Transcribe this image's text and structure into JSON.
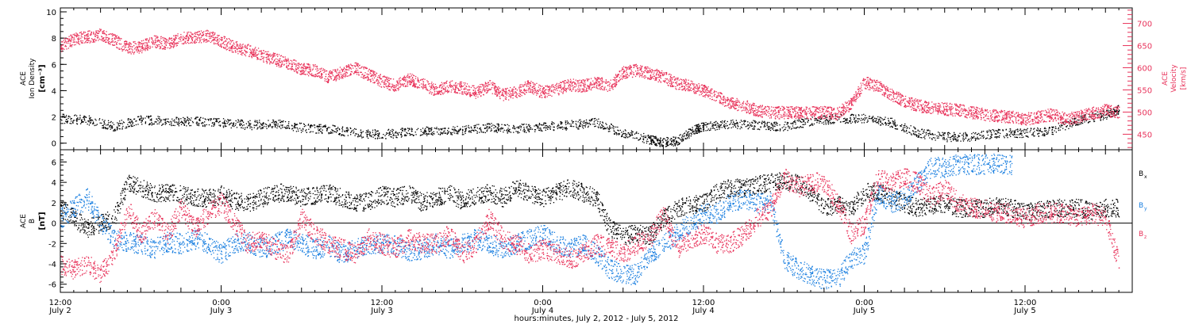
{
  "colors": {
    "black": "#000000",
    "pink": "#e8325a",
    "blue": "#1a7fe0"
  },
  "chart_data": [
    {
      "type": "scatter",
      "panel": "top",
      "ylabel_lines": [
        "ACE",
        "Ion Density"
      ],
      "ylabel_unit": "[cm⁻³]",
      "y2label_lines": [
        "ACE",
        "Velocity"
      ],
      "y2label_unit": "[km/s]",
      "ylim": [
        -0.5,
        10.3
      ],
      "yticks": [
        0,
        2,
        4,
        6,
        8,
        10
      ],
      "y2lim": [
        415,
        735
      ],
      "y2ticks": [
        450,
        500,
        550,
        600,
        650,
        700
      ],
      "xlim_hours": [
        0,
        80
      ],
      "series": [
        {
          "color_key": "black",
          "axis": "left",
          "x": [
            0,
            2,
            4,
            6,
            8,
            10,
            12,
            14,
            16,
            18,
            20,
            22,
            24,
            26,
            28,
            30,
            32,
            34,
            36,
            38,
            40,
            42,
            44,
            44.8,
            46,
            47.4,
            48,
            50,
            52,
            54,
            56,
            58,
            60,
            62,
            64,
            66,
            68,
            70,
            72,
            74,
            76,
            78,
            79
          ],
          "y": [
            1.9,
            1.8,
            1.3,
            1.8,
            1.7,
            1.7,
            1.6,
            1.4,
            1.5,
            1.2,
            1.1,
            0.8,
            0.7,
            0.9,
            1.0,
            1.0,
            1.2,
            1.1,
            1.3,
            1.4,
            1.6,
            0.8,
            0.3,
            0.1,
            0.2,
            1.1,
            1.3,
            1.5,
            1.4,
            1.3,
            1.7,
            1.9,
            1.9,
            1.6,
            0.8,
            0.5,
            0.5,
            0.8,
            0.8,
            1.0,
            1.8,
            2.2,
            2.6
          ]
        },
        {
          "color_key": "pink",
          "axis": "right",
          "x": [
            0,
            1,
            2,
            3,
            4,
            5,
            6,
            7,
            8,
            9,
            10,
            11,
            12,
            13,
            14,
            15,
            16,
            17,
            18,
            19,
            20,
            21,
            22,
            23,
            24,
            25,
            26,
            27,
            28,
            29,
            30,
            31,
            32,
            33,
            34,
            35,
            36,
            37,
            38,
            39,
            40,
            41,
            42,
            43,
            44,
            45,
            46,
            47,
            48,
            49,
            50,
            51,
            52,
            53,
            54,
            55,
            56,
            57,
            58,
            59,
            60,
            61,
            62,
            63,
            64,
            65,
            66,
            67,
            68,
            69,
            70,
            71,
            72,
            73,
            74,
            75,
            76,
            77,
            78,
            79
          ],
          "y": [
            650,
            665,
            670,
            675,
            663,
            645,
            648,
            660,
            655,
            668,
            670,
            672,
            660,
            648,
            640,
            628,
            620,
            610,
            598,
            595,
            580,
            590,
            600,
            585,
            570,
            560,
            575,
            565,
            550,
            560,
            555,
            545,
            560,
            540,
            545,
            560,
            545,
            552,
            562,
            560,
            568,
            560,
            590,
            595,
            588,
            580,
            565,
            560,
            550,
            535,
            520,
            515,
            505,
            500,
            500,
            500,
            500,
            500,
            498,
            520,
            568,
            560,
            540,
            525,
            515,
            510,
            508,
            505,
            500,
            495,
            492,
            490,
            485,
            490,
            495,
            485,
            490,
            498,
            505,
            500
          ]
        }
      ]
    },
    {
      "type": "scatter",
      "panel": "bottom",
      "ylabel_lines": [
        "ACE",
        "B"
      ],
      "ylabel_unit": "[nT]",
      "ylim": [
        -6.8,
        7.2
      ],
      "yticks": [
        -6,
        -4,
        -2,
        0,
        2,
        4,
        6
      ],
      "xlim_hours": [
        0,
        80
      ],
      "xticks": [
        {
          "hour": 0,
          "time": "12:00",
          "day": "July 2"
        },
        {
          "hour": 12,
          "time": "0:00",
          "day": "July 3"
        },
        {
          "hour": 24,
          "time": "12:00",
          "day": "July 3"
        },
        {
          "hour": 36,
          "time": "0:00",
          "day": "July 4"
        },
        {
          "hour": 48,
          "time": "12:00",
          "day": "July 4"
        },
        {
          "hour": 60,
          "time": "0:00",
          "day": "July 5"
        },
        {
          "hour": 72,
          "time": "12:00",
          "day": "July 5"
        }
      ],
      "xlabel": "hours:minutes, July  2, 2012 - July  5, 2012",
      "series": [
        {
          "name": "Bx",
          "legend_main": "B",
          "legend_sub": "x",
          "color_key": "black",
          "x": [
            0,
            1,
            2,
            3,
            4,
            5,
            6,
            7,
            8,
            9,
            10,
            11,
            12,
            13,
            14,
            15,
            16,
            17,
            18,
            19,
            20,
            21,
            22,
            23,
            24,
            25,
            26,
            27,
            28,
            29,
            30,
            31,
            32,
            33,
            34,
            35,
            36,
            37,
            38,
            39,
            40,
            41,
            42,
            43,
            44,
            45,
            46,
            47,
            48,
            49,
            50,
            51,
            52,
            53,
            54,
            55,
            56,
            57,
            58,
            59,
            60,
            61,
            62,
            63,
            64,
            65,
            66,
            67,
            68,
            69,
            70,
            71,
            72,
            73,
            74,
            75,
            76,
            77,
            78,
            79
          ],
          "y": [
            1.5,
            0.5,
            -0.5,
            0.0,
            0.5,
            4.0,
            3.5,
            3.0,
            3.0,
            2.8,
            2.5,
            2.5,
            2.8,
            2.2,
            2.0,
            2.5,
            3.0,
            3.0,
            2.5,
            2.8,
            3.0,
            2.5,
            2.0,
            2.2,
            2.8,
            2.5,
            3.0,
            2.0,
            2.5,
            3.0,
            2.2,
            2.8,
            3.0,
            2.5,
            3.5,
            3.0,
            2.5,
            3.0,
            3.5,
            3.0,
            2.5,
            -0.5,
            -1.2,
            -1.0,
            -1.2,
            0.5,
            1.5,
            1.8,
            2.0,
            3.0,
            3.5,
            3.5,
            3.8,
            4.0,
            4.2,
            4.0,
            3.0,
            1.5,
            1.8,
            1.5,
            3.0,
            3.2,
            2.5,
            2.0,
            1.5,
            1.8,
            2.0,
            1.5,
            1.5,
            1.5,
            1.8,
            1.5,
            1.2,
            1.3,
            1.5,
            1.5,
            1.5,
            1.2,
            1.5,
            1.5
          ]
        },
        {
          "name": "By",
          "legend_main": "B",
          "legend_sub": "y",
          "color_key": "blue",
          "x": [
            0,
            1,
            2,
            3,
            4,
            5,
            6,
            7,
            8,
            9,
            10,
            11,
            12,
            13,
            14,
            15,
            16,
            17,
            18,
            19,
            20,
            21,
            22,
            23,
            24,
            25,
            26,
            27,
            28,
            29,
            30,
            31,
            32,
            33,
            34,
            35,
            36,
            37,
            38,
            39,
            40,
            41,
            42,
            43,
            44,
            45,
            46,
            47,
            48,
            49,
            50,
            51,
            52,
            53,
            54,
            55,
            56,
            57,
            58,
            59,
            60,
            61,
            62,
            63,
            64,
            65,
            66,
            67,
            68,
            69,
            70,
            71,
            72,
            73,
            74,
            75,
            76,
            77,
            78,
            79
          ],
          "y": [
            0.5,
            1.5,
            2.5,
            0.0,
            -1.5,
            -1.8,
            -2.0,
            -2.5,
            -1.8,
            -2.0,
            -1.5,
            -2.0,
            -3.0,
            -2.0,
            -1.8,
            -2.5,
            -2.0,
            -1.5,
            -2.0,
            -2.5,
            -2.2,
            -3.0,
            -2.5,
            -2.0,
            -2.0,
            -2.2,
            -2.8,
            -2.5,
            -2.0,
            -2.5,
            -2.0,
            -1.5,
            -2.0,
            -2.5,
            -2.0,
            -1.5,
            -1.0,
            -2.0,
            -2.5,
            -2.0,
            -3.0,
            -4.5,
            -5.0,
            -5.0,
            -3.0,
            -2.0,
            -1.0,
            0.0,
            1.0,
            1.0,
            2.0,
            2.5,
            2.0,
            2.0,
            -3.5,
            -4.5,
            -5.0,
            -5.5,
            -5.5,
            -3.5,
            -3.0,
            3.0,
            2.0,
            2.5,
            4.0,
            5.5,
            5.5,
            5.8,
            5.8,
            5.8,
            5.9,
            5.8,
            null,
            null,
            null,
            null,
            null,
            null,
            null,
            null
          ]
        },
        {
          "name": "Bz",
          "legend_main": "B",
          "legend_sub": "z",
          "color_key": "pink",
          "x": [
            0,
            1,
            2,
            3,
            4,
            5,
            6,
            7,
            8,
            9,
            10,
            11,
            12,
            13,
            14,
            15,
            16,
            17,
            18,
            19,
            20,
            21,
            22,
            23,
            24,
            25,
            26,
            27,
            28,
            29,
            30,
            31,
            32,
            33,
            34,
            35,
            36,
            37,
            38,
            39,
            40,
            41,
            42,
            43,
            44,
            45,
            46,
            47,
            48,
            49,
            50,
            51,
            52,
            53,
            54,
            55,
            56,
            57,
            58,
            59,
            60,
            61,
            62,
            63,
            64,
            65,
            66,
            67,
            68,
            69,
            70,
            71,
            72,
            73,
            74,
            75,
            76,
            77,
            78,
            79
          ],
          "y": [
            -4.0,
            -4.5,
            -4.0,
            -5.0,
            -3.0,
            1.5,
            -1.0,
            0.5,
            -1.0,
            1.5,
            -0.5,
            1.0,
            2.0,
            0.0,
            -2.0,
            -1.5,
            -2.5,
            -3.0,
            0.5,
            -1.0,
            -2.0,
            -2.5,
            -3.0,
            -1.5,
            -2.0,
            -2.5,
            -1.5,
            -2.0,
            -2.0,
            -1.0,
            -3.0,
            -2.0,
            0.5,
            -1.5,
            -2.0,
            -3.0,
            -2.5,
            -3.0,
            -3.5,
            -3.0,
            -2.0,
            -2.5,
            -3.0,
            -2.0,
            -1.5,
            1.0,
            -2.5,
            -1.5,
            -1.0,
            -2.0,
            -2.0,
            -1.0,
            0.5,
            1.5,
            4.5,
            3.5,
            4.0,
            4.0,
            2.0,
            -1.0,
            0.0,
            4.5,
            4.0,
            4.5,
            4.0,
            2.5,
            3.5,
            2.0,
            1.5,
            1.5,
            1.0,
            1.0,
            0.5,
            1.0,
            1.0,
            1.0,
            0.5,
            1.0,
            0.5,
            -4.0
          ]
        }
      ]
    }
  ]
}
